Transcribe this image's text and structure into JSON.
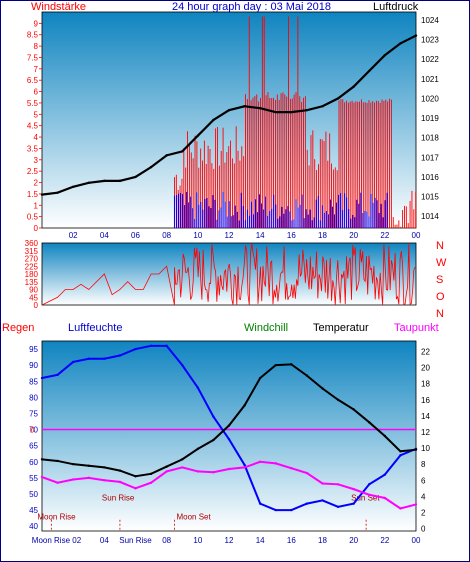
{
  "header": {
    "left_label": "Windstärke",
    "title": "24 hour graph day : 03 Mai 2018",
    "right_label": "Luftdruck"
  },
  "legend_bottom": {
    "regen": "Regen",
    "luftfeuchte": "Luftfeuchte",
    "windchill": "Windchill",
    "temperatur": "Temperatur",
    "taupunkt": "Taupunkt"
  },
  "colors": {
    "wind_speed": "#ff0000",
    "wind_gust": "#0000ff",
    "pressure": "#000000",
    "direction": "#ff0000",
    "humidity": "#0000ff",
    "temperature": "#000000",
    "dewpoint": "#ff00ff",
    "rain_line": "#ff00ff",
    "bg_top": "#0f84c0",
    "bg_bottom": "#ffffff"
  },
  "chart_data": [
    {
      "type": "line",
      "x_ticks": [
        "02",
        "04",
        "06",
        "08",
        "10",
        "12",
        "14",
        "16",
        "18",
        "20",
        "22",
        "00"
      ],
      "left_ticks": [
        "0",
        "0.5",
        "1",
        "1.5",
        "2",
        "2.5",
        "3",
        "3.5",
        "4",
        "4.5",
        "5",
        "5.5",
        "6",
        "6.5",
        "7",
        "7.5",
        "8",
        "8.5",
        "9"
      ],
      "right_ticks": [
        "1014",
        "1015",
        "1016",
        "1017",
        "1018",
        "1019",
        "1020",
        "1021",
        "1022",
        "1023",
        "1024"
      ],
      "ylim_left": [
        0,
        9.5
      ],
      "ylim_right": [
        1013.4,
        1024.4
      ],
      "pressure_hours": [
        0,
        1,
        2,
        3,
        4,
        5,
        6,
        7,
        8,
        9,
        10,
        11,
        12,
        13,
        14,
        15,
        16,
        17,
        18,
        19,
        20,
        21,
        22,
        23,
        24
      ],
      "pressure_values": [
        1015.1,
        1015.2,
        1015.5,
        1015.7,
        1015.8,
        1015.8,
        1016.0,
        1016.5,
        1017.1,
        1017.3,
        1018.1,
        1018.9,
        1019.4,
        1019.6,
        1019.5,
        1019.3,
        1019.3,
        1019.4,
        1019.6,
        1020.0,
        1020.6,
        1021.4,
        1022.2,
        1022.8,
        1023.2
      ],
      "wind_gust_level": 1.5,
      "wind_speed_level": 4.0,
      "wind_start_hour": 8.5
    },
    {
      "type": "line",
      "right_labels": [
        "N",
        "W",
        "S",
        "O",
        "N"
      ],
      "left_ticks": [
        "0",
        "45",
        "90",
        "135",
        "180",
        "225",
        "270",
        "315",
        "360"
      ],
      "ylim": [
        0,
        360
      ],
      "x_ticks": [
        "02",
        "04",
        "06",
        "08",
        "10",
        "12",
        "14",
        "16",
        "18",
        "20",
        "22",
        "00"
      ],
      "direction_hours": [
        0,
        1,
        1.5,
        2,
        2.5,
        3,
        4,
        4.5,
        5,
        5.5,
        6,
        6.5,
        7,
        7.5,
        8,
        8.5
      ],
      "direction_values": [
        0,
        45,
        90,
        90,
        120,
        90,
        180,
        60,
        90,
        135,
        90,
        90,
        180,
        180,
        225,
        0
      ]
    },
    {
      "type": "line",
      "left_ticks": [
        "40",
        "45",
        "50",
        "55",
        "60",
        "65",
        "70",
        "75",
        "80",
        "85",
        "90",
        "95"
      ],
      "right_ticks": [
        "0",
        "2",
        "4",
        "6",
        "8",
        "10",
        "12",
        "14",
        "16",
        "18",
        "20",
        "22"
      ],
      "ylim_left": [
        38.5,
        97.5
      ],
      "ylim_right": [
        -0.3,
        23.3
      ],
      "rain_marker": "0",
      "x_ticks": [
        "Moon Rise 02",
        "04",
        "Sun Rise",
        "08",
        "10",
        "12",
        "14",
        "16",
        "18",
        "20",
        "22",
        "00"
      ],
      "humidity_hours": [
        0,
        1,
        2,
        3,
        4,
        5,
        6,
        7,
        8,
        9,
        10,
        11,
        12,
        13,
        14,
        15,
        16,
        17,
        18,
        19,
        20,
        21,
        22,
        23,
        24
      ],
      "humidity_values": [
        86,
        87,
        91,
        92,
        92,
        93,
        95,
        96,
        96,
        90,
        83,
        74,
        67,
        59,
        47,
        45,
        45,
        47,
        48,
        46,
        47,
        53,
        56,
        62,
        64
      ],
      "temperature_hours": [
        0,
        1,
        2,
        3,
        4,
        5,
        6,
        7,
        8,
        9,
        10,
        11,
        12,
        13,
        14,
        15,
        16,
        17,
        18,
        19,
        20,
        21,
        22,
        23,
        24
      ],
      "temperature_values": [
        8.6,
        8.4,
        8.0,
        7.8,
        7.6,
        7.2,
        6.5,
        6.8,
        7.7,
        8.6,
        9.9,
        11.0,
        12.8,
        15.3,
        18.7,
        20.3,
        20.4,
        19.0,
        17.4,
        16.0,
        14.8,
        13.2,
        11.5,
        9.6,
        9.8
      ],
      "dewpoint_hours": [
        0,
        1,
        2,
        3,
        4,
        5,
        6,
        7,
        8,
        9,
        10,
        11,
        12,
        13,
        14,
        15,
        16,
        17,
        18,
        19,
        20,
        21,
        22,
        23,
        24
      ],
      "dewpoint_values": [
        6.4,
        5.7,
        6.1,
        6.3,
        6.0,
        5.8,
        5.0,
        5.7,
        7.1,
        7.6,
        7.1,
        7.0,
        7.4,
        7.6,
        8.3,
        8.1,
        7.5,
        6.9,
        5.6,
        5.5,
        4.9,
        4.2,
        3.8,
        2.5,
        3.0
      ],
      "annotations": [
        "Moon Rise",
        "Sun Rise",
        "Moon Set",
        "Sun Set"
      ],
      "annotation_hours": [
        0.6,
        5.0,
        8.5,
        20.8
      ]
    }
  ]
}
